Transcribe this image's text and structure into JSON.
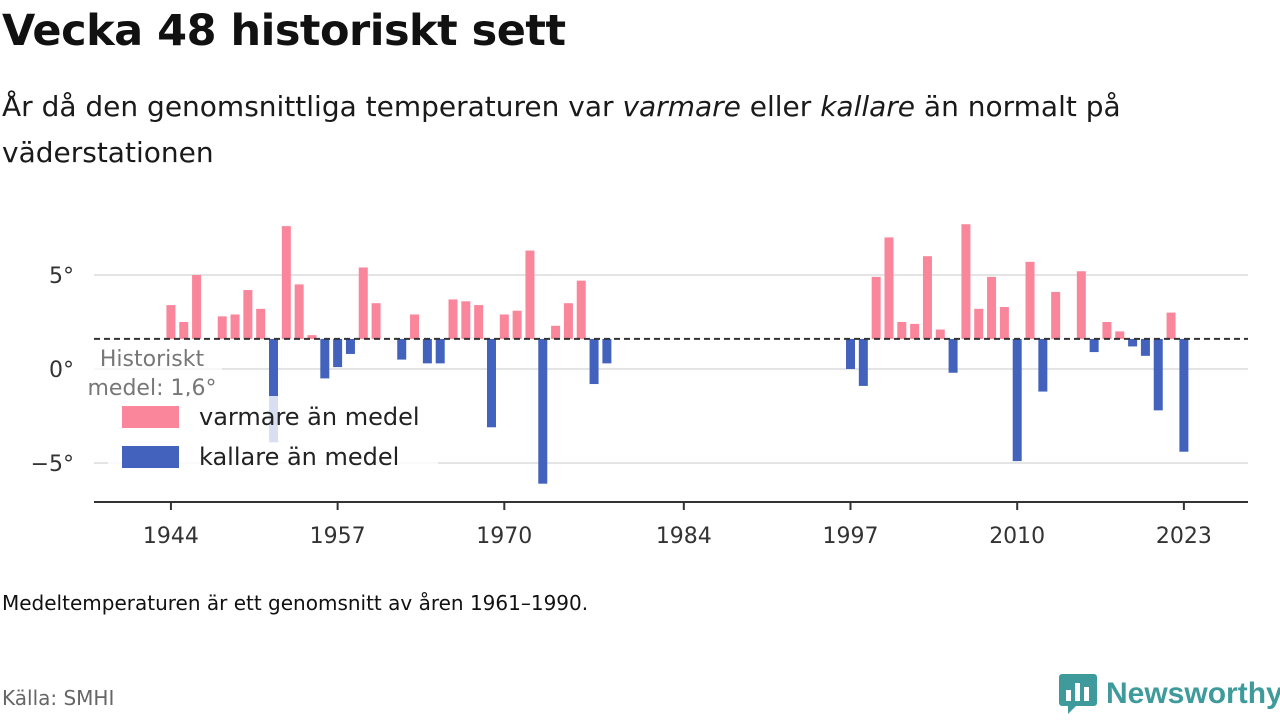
{
  "title": "Vecka 48 historiskt sett",
  "subtitle": {
    "part1": "År då den genomsnittliga temperaturen var ",
    "warm_word": "varmare",
    "part2": " eller ",
    "cold_word": "kallare",
    "part3": " än normalt på väderstationen"
  },
  "note": "Medeltemperaturen är ett genomsnitt av åren 1961–1990.",
  "source": "Källa: SMHI",
  "brand": {
    "name": "Newsworthy",
    "icon": "bar-chart-chat-icon"
  },
  "colors": {
    "warm": "#f9869a",
    "cold": "#4262be",
    "brand": "#3f9b9b"
  },
  "chart_data": {
    "type": "bar",
    "baseline": 1.6,
    "baseline_label": [
      "Historiskt",
      "medel: 1,6°"
    ],
    "ylim": [
      -6.8,
      7.5
    ],
    "yticks": [
      5,
      0,
      -5
    ],
    "ytick_labels": [
      "5°",
      "0°",
      "−5°"
    ],
    "xlim": [
      1938,
      2028
    ],
    "xticks": [
      1944,
      1957,
      1970,
      1984,
      1997,
      2010,
      2023
    ],
    "legend": [
      {
        "label": "varmare än medel",
        "color": "#f9869a"
      },
      {
        "label": "kallare än medel",
        "color": "#4262be"
      }
    ],
    "legend_position": "bottom-left",
    "series": {
      "years": [
        1944,
        1945,
        1946,
        1948,
        1949,
        1950,
        1951,
        1952,
        1953,
        1954,
        1955,
        1956,
        1957,
        1958,
        1959,
        1960,
        1962,
        1963,
        1964,
        1965,
        1966,
        1967,
        1968,
        1969,
        1970,
        1971,
        1972,
        1973,
        1974,
        1975,
        1976,
        1977,
        1978,
        1997,
        1998,
        1999,
        2000,
        2001,
        2002,
        2003,
        2004,
        2005,
        2006,
        2007,
        2008,
        2009,
        2010,
        2011,
        2012,
        2013,
        2015,
        2016,
        2017,
        2018,
        2019,
        2020,
        2021,
        2022,
        2023
      ],
      "values": [
        3.4,
        2.5,
        5.0,
        2.8,
        2.9,
        4.2,
        3.2,
        -3.9,
        7.6,
        4.5,
        1.8,
        -0.5,
        0.1,
        0.8,
        5.4,
        3.5,
        0.5,
        2.9,
        0.3,
        0.3,
        3.7,
        3.6,
        3.4,
        -3.1,
        2.9,
        3.1,
        6.3,
        -6.1,
        2.3,
        3.5,
        4.7,
        -0.8,
        0.3,
        0.0,
        -0.9,
        4.9,
        7.0,
        2.5,
        2.4,
        6.0,
        2.1,
        -0.2,
        7.7,
        3.2,
        4.9,
        3.3,
        -4.9,
        5.7,
        -1.2,
        4.1,
        5.2,
        0.9,
        2.5,
        2.0,
        1.2,
        0.7,
        -2.2,
        3.0,
        -4.4
      ]
    }
  }
}
